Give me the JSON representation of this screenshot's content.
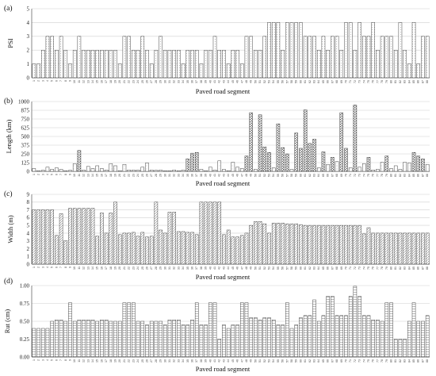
{
  "chart_data": [
    {
      "panel_label": "(a)",
      "type": "bar",
      "xlabel": "Paved road segment",
      "ylabel": "PSI",
      "ylim": [
        0,
        5
      ],
      "yticks": [
        "0",
        "1",
        "2",
        "3",
        "4",
        "5"
      ],
      "grid": true,
      "categories": [
        "1",
        "2",
        "3",
        "4",
        "5",
        "6",
        "7",
        "8",
        "9",
        "10",
        "11",
        "12",
        "13",
        "14",
        "15",
        "16",
        "17",
        "18",
        "19",
        "20",
        "21",
        "22",
        "23",
        "24",
        "25",
        "26",
        "27",
        "28",
        "29",
        "30",
        "31",
        "32",
        "33",
        "34",
        "35",
        "36",
        "37",
        "38",
        "39",
        "40",
        "41",
        "42",
        "43",
        "44",
        "45",
        "46",
        "47",
        "48",
        "49",
        "50",
        "51",
        "52",
        "53",
        "54",
        "55",
        "56",
        "57",
        "58",
        "59",
        "60",
        "61",
        "62",
        "63",
        "64",
        "65",
        "66",
        "67",
        "68",
        "69",
        "70",
        "71",
        "72",
        "73",
        "74",
        "75",
        "76",
        "77",
        "78",
        "79",
        "80",
        "81",
        "82",
        "83",
        "84",
        "85",
        "86",
        "87",
        "88"
      ],
      "values": [
        1,
        1,
        2,
        3,
        3,
        2,
        3,
        2,
        1,
        2,
        3,
        2,
        2,
        2,
        2,
        2,
        2,
        2,
        2,
        1,
        3,
        3,
        2,
        2,
        3,
        2,
        1,
        2,
        3,
        2,
        2,
        2,
        2,
        1,
        2,
        2,
        2,
        1,
        2,
        2,
        3,
        2,
        2,
        1,
        2,
        2,
        1,
        3,
        3,
        2,
        2,
        3,
        4,
        4,
        4,
        2,
        4,
        4,
        4,
        4,
        3,
        3,
        3,
        2,
        3,
        2,
        3,
        3,
        2,
        4,
        4,
        2,
        4,
        3,
        3,
        4,
        2,
        3,
        3,
        3,
        2,
        4,
        2,
        1,
        4,
        1,
        3,
        3
      ]
    },
    {
      "panel_label": "(b)",
      "type": "bar",
      "xlabel": "Paved road segment",
      "ylabel": "Length (km)",
      "ylim": [
        0,
        1000
      ],
      "yticks": [
        "0",
        "125",
        "250",
        "375",
        "500",
        "625",
        "750",
        "875",
        "1000"
      ],
      "grid": true,
      "categories": [
        "1",
        "2",
        "3",
        "4",
        "5",
        "6",
        "7",
        "8",
        "9",
        "10",
        "11",
        "12",
        "13",
        "14",
        "15",
        "16",
        "17",
        "18",
        "19",
        "20",
        "21",
        "22",
        "23",
        "24",
        "25",
        "26",
        "27",
        "28",
        "29",
        "30",
        "31",
        "32",
        "33",
        "34",
        "35",
        "36",
        "37",
        "38",
        "39",
        "40",
        "41",
        "42",
        "43",
        "44",
        "45",
        "46",
        "47",
        "48",
        "49",
        "50",
        "51",
        "52",
        "53",
        "54",
        "55",
        "56",
        "57",
        "58",
        "59",
        "60",
        "61",
        "62",
        "63",
        "64",
        "65",
        "66",
        "67",
        "68",
        "69",
        "70",
        "71",
        "72",
        "73",
        "74",
        "75",
        "76",
        "77",
        "78",
        "79",
        "80",
        "81",
        "82",
        "83",
        "84",
        "85",
        "86",
        "87",
        "88"
      ],
      "values": [
        40,
        10,
        15,
        60,
        30,
        50,
        30,
        10,
        15,
        110,
        300,
        20,
        70,
        40,
        80,
        40,
        20,
        110,
        80,
        10,
        100,
        20,
        20,
        20,
        60,
        120,
        20,
        15,
        20,
        10,
        10,
        20,
        10,
        20,
        180,
        260,
        270,
        30,
        10,
        60,
        20,
        150,
        30,
        10,
        130,
        60,
        40,
        220,
        840,
        30,
        810,
        350,
        270,
        50,
        680,
        340,
        250,
        30,
        550,
        330,
        880,
        400,
        460,
        50,
        280,
        100,
        200,
        140,
        840,
        330,
        50,
        950,
        60,
        110,
        200,
        20,
        30,
        130,
        220,
        40,
        80,
        30,
        130,
        120,
        270,
        220,
        180,
        100
      ]
    },
    {
      "panel_label": "(c)",
      "type": "bar",
      "xlabel": "Paved road segment",
      "ylabel": "Width (m)",
      "ylim": [
        0,
        9
      ],
      "yticks": [
        "0",
        "1",
        "2",
        "3",
        "4",
        "5",
        "6",
        "7",
        "8",
        "9"
      ],
      "grid": true,
      "categories": [
        "1",
        "2",
        "3",
        "4",
        "5",
        "6",
        "7",
        "8",
        "9",
        "10",
        "11",
        "12",
        "13",
        "14",
        "15",
        "16",
        "17",
        "18",
        "19",
        "20",
        "21",
        "22",
        "23",
        "24",
        "25",
        "26",
        "27",
        "28",
        "29",
        "30",
        "31",
        "32",
        "33",
        "34",
        "35",
        "36",
        "37",
        "38",
        "39",
        "40",
        "41",
        "42",
        "43",
        "44",
        "45",
        "46",
        "47",
        "48",
        "49",
        "50",
        "51",
        "52",
        "53",
        "54",
        "55",
        "56",
        "57",
        "58",
        "59",
        "60",
        "61",
        "62",
        "63",
        "64",
        "65",
        "66",
        "67",
        "68",
        "69",
        "70",
        "71",
        "72",
        "73",
        "74",
        "75",
        "76",
        "77",
        "78",
        "79",
        "80",
        "81",
        "82",
        "83",
        "84",
        "85",
        "86",
        "87",
        "88"
      ],
      "values": [
        7,
        7,
        7,
        7,
        7,
        3.7,
        6.5,
        3,
        7.2,
        7.2,
        7.2,
        7.2,
        7.2,
        7.2,
        3.6,
        6.6,
        4,
        6.6,
        8,
        3.8,
        4,
        4,
        4.1,
        3.6,
        4.1,
        3.5,
        3.6,
        8,
        4.4,
        4,
        6.7,
        6.7,
        4.2,
        4.2,
        4.1,
        4.1,
        3.8,
        8,
        8,
        8,
        8,
        8,
        3.8,
        4.4,
        3.5,
        3.5,
        3.7,
        4,
        5,
        5.5,
        5.5,
        5.2,
        4,
        5.3,
        5.3,
        5.3,
        5.2,
        5.2,
        5.2,
        5.1,
        5,
        5,
        5,
        5,
        5,
        5,
        5,
        5,
        5,
        5,
        5,
        5,
        5,
        3.9,
        4.7,
        4,
        4,
        4,
        4,
        4,
        4,
        4,
        4,
        4,
        4,
        4,
        4,
        4
      ]
    },
    {
      "panel_label": "(d)",
      "type": "bar",
      "xlabel": "Paved road segment",
      "ylabel": "Rut (cm)",
      "ylim": [
        0,
        1.0
      ],
      "yticks": [
        "0.00",
        "0.25",
        "0.50",
        "0.75",
        "1.00"
      ],
      "grid": true,
      "categories": [
        "1",
        "2",
        "3",
        "4",
        "5",
        "6",
        "7",
        "8",
        "9",
        "10",
        "11",
        "12",
        "13",
        "14",
        "15",
        "16",
        "17",
        "18",
        "19",
        "20",
        "21",
        "22",
        "23",
        "24",
        "25",
        "26",
        "27",
        "28",
        "29",
        "30",
        "31",
        "32",
        "33",
        "34",
        "35",
        "36",
        "37",
        "38",
        "39",
        "40",
        "41",
        "42",
        "43",
        "44",
        "45",
        "46",
        "47",
        "48",
        "49",
        "50",
        "51",
        "52",
        "53",
        "54",
        "55",
        "56",
        "57",
        "58",
        "59",
        "60",
        "61",
        "62",
        "63",
        "64",
        "65",
        "66",
        "67",
        "68",
        "69",
        "70",
        "71",
        "72",
        "73",
        "74",
        "75",
        "76",
        "77",
        "78",
        "79",
        "80",
        "81",
        "82",
        "83",
        "84",
        "85",
        "86",
        "87",
        "88"
      ],
      "values": [
        0.4,
        0.4,
        0.4,
        0.4,
        0.5,
        0.52,
        0.52,
        0.5,
        0.76,
        0.5,
        0.52,
        0.52,
        0.52,
        0.52,
        0.5,
        0.52,
        0.52,
        0.5,
        0.5,
        0.5,
        0.76,
        0.76,
        0.76,
        0.5,
        0.5,
        0.45,
        0.5,
        0.5,
        0.5,
        0.45,
        0.52,
        0.52,
        0.52,
        0.45,
        0.45,
        0.52,
        0.76,
        0.45,
        0.45,
        0.76,
        0.76,
        0.25,
        0.45,
        0.4,
        0.45,
        0.45,
        0.76,
        0.76,
        0.55,
        0.55,
        0.52,
        0.55,
        0.55,
        0.52,
        0.45,
        0.45,
        0.76,
        0.4,
        0.45,
        0.55,
        0.58,
        0.58,
        0.8,
        0.5,
        0.58,
        0.85,
        0.85,
        0.58,
        0.58,
        0.58,
        0.85,
        0.99,
        0.85,
        0.58,
        0.58,
        0.52,
        0.52,
        0.5,
        0.76,
        0.76,
        0.25,
        0.25,
        0.25,
        0.5,
        0.76,
        0.5,
        0.5,
        0.58
      ]
    }
  ]
}
